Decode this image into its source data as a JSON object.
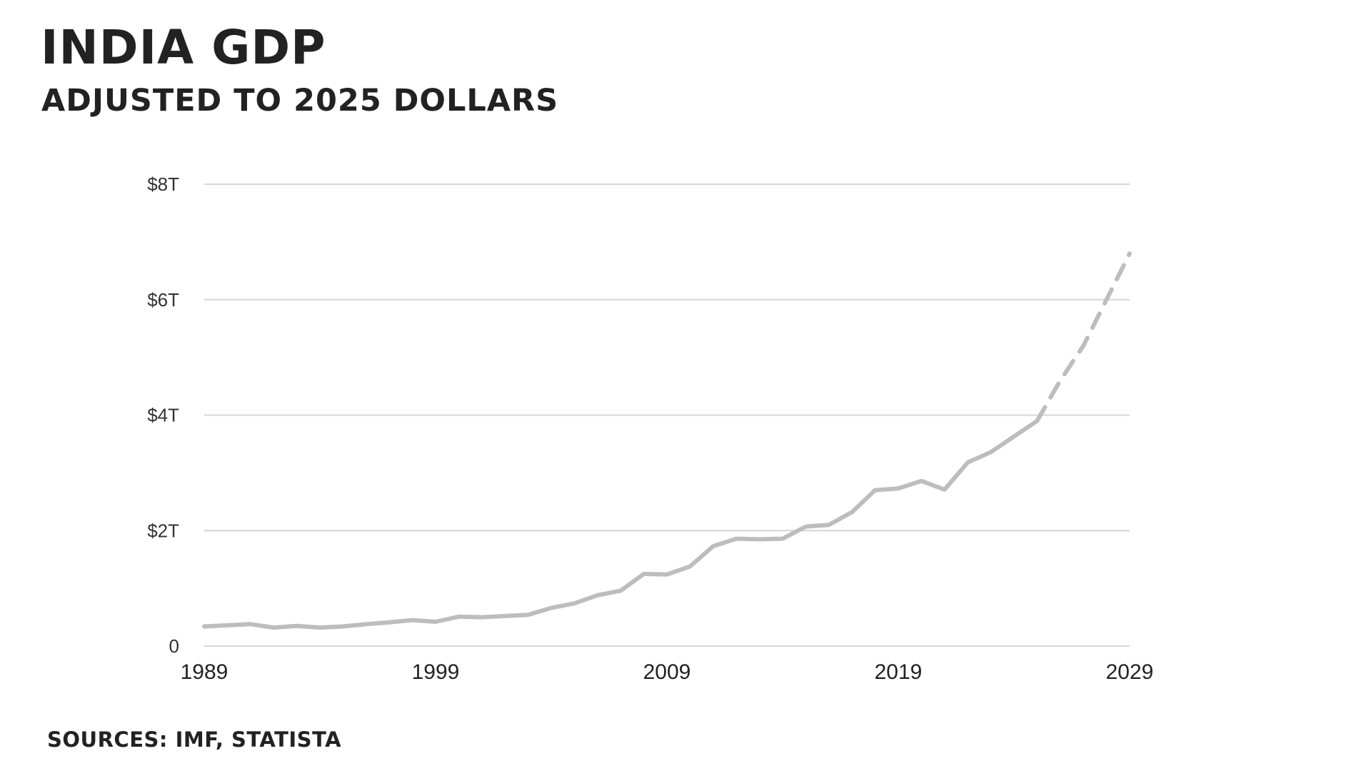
{
  "title": "INDIA GDP",
  "subtitle": "ADJUSTED TO 2025 DOLLARS",
  "source": "SOURCES: IMF, STATISTA",
  "colors": {
    "line": "#bdbdbd",
    "grid": "#d6d6d6",
    "text": "#222222"
  },
  "chart_data": {
    "type": "line",
    "title": "INDIA GDP",
    "subtitle": "ADJUSTED TO 2025 DOLLARS",
    "xlabel": "",
    "ylabel": "",
    "xlim": [
      1989,
      2029
    ],
    "ylim": [
      0,
      8
    ],
    "x_ticks": [
      1989,
      1999,
      2009,
      2019,
      2029
    ],
    "x_tick_labels": [
      "1989",
      "1999",
      "2009",
      "2019",
      "2029"
    ],
    "y_ticks": [
      0,
      2,
      4,
      6,
      8
    ],
    "y_tick_labels": [
      "0",
      "$2T",
      "$4T",
      "$6T",
      "$8T"
    ],
    "grid": true,
    "legend": "none",
    "series": [
      {
        "style": "solid",
        "x": [
          1989,
          1990,
          1991,
          1992,
          1993,
          1994,
          1995,
          1996,
          1997,
          1998,
          1999,
          2000,
          2001,
          2002,
          2003,
          2004,
          2005,
          2006,
          2007,
          2008,
          2009,
          2010,
          2011,
          2012,
          2013,
          2014,
          2015,
          2016,
          2017,
          2018,
          2019,
          2020,
          2021,
          2022,
          2023,
          2024,
          2025
        ],
        "y": [
          0.34,
          0.36,
          0.38,
          0.32,
          0.35,
          0.32,
          0.34,
          0.38,
          0.41,
          0.45,
          0.42,
          0.51,
          0.5,
          0.52,
          0.54,
          0.66,
          0.74,
          0.88,
          0.96,
          1.25,
          1.24,
          1.38,
          1.73,
          1.86,
          1.85,
          1.86,
          2.07,
          2.1,
          2.32,
          2.7,
          2.73,
          2.86,
          2.71,
          3.18,
          3.36,
          3.63,
          3.9
        ]
      },
      {
        "style": "dashed",
        "x": [
          2025,
          2026,
          2027,
          2028,
          2029
        ],
        "y": [
          3.9,
          4.6,
          5.2,
          6.0,
          6.8
        ]
      }
    ]
  }
}
